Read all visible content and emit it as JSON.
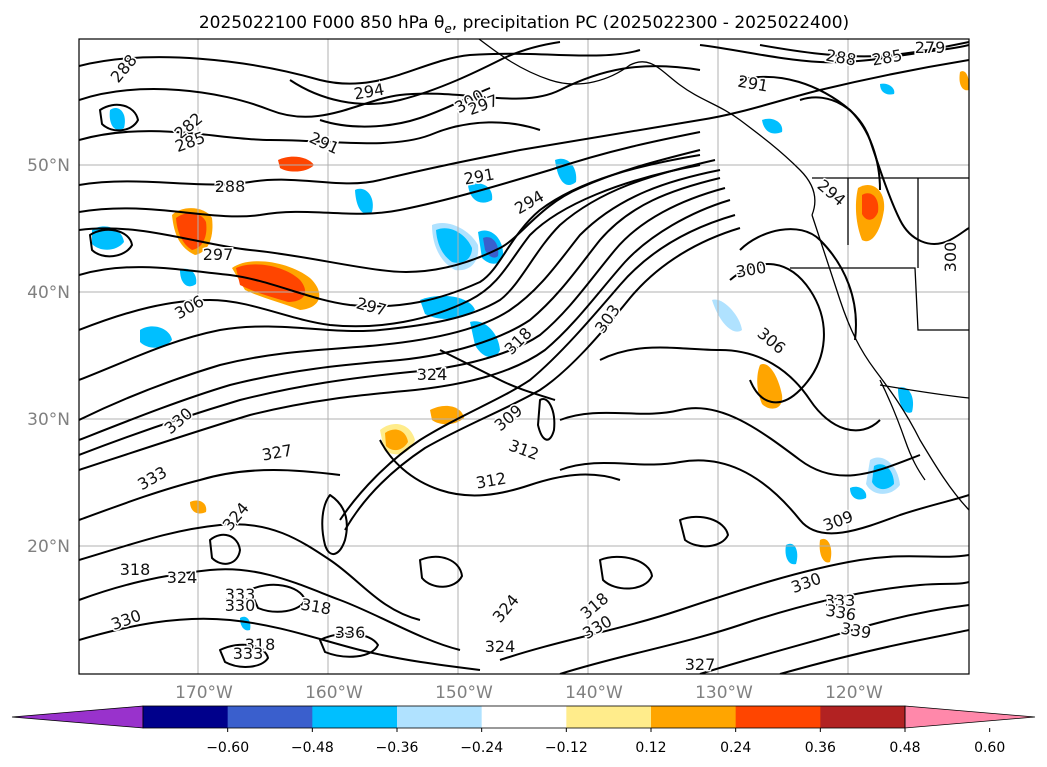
{
  "figure": {
    "title_main": "2025022100 F000 850 hPa θ",
    "title_sub": "e",
    "title_rest": ", precipitation PC (2025022300 - 2025022400)"
  },
  "axes": {
    "lat_labels": [
      "50°N",
      "40°N",
      "30°N",
      "20°N"
    ],
    "lon_labels": [
      "170°W",
      "160°W",
      "150°W",
      "140°W",
      "130°W",
      "120°W"
    ]
  },
  "colorbar": {
    "colors": [
      "#9932cc",
      "#00008b",
      "#3a5fcd",
      "#00bfff",
      "#b0e2ff",
      "#ffffff",
      "#ffec8b",
      "#ffa500",
      "#ff4500",
      "#b22222",
      "#ff88aa"
    ],
    "tick_labels": [
      "−0.60",
      "−0.48",
      "−0.36",
      "−0.24",
      "−0.12",
      "0.12",
      "0.24",
      "0.36",
      "0.48",
      "0.60"
    ]
  },
  "contour_labels": [
    {
      "text": "288"
    },
    {
      "text": "282"
    },
    {
      "text": "285"
    },
    {
      "text": "294"
    },
    {
      "text": "291"
    },
    {
      "text": "300"
    },
    {
      "text": "297"
    },
    {
      "text": "288"
    },
    {
      "text": "297"
    },
    {
      "text": "306"
    },
    {
      "text": "297"
    },
    {
      "text": "291"
    },
    {
      "text": "294"
    },
    {
      "text": "303"
    },
    {
      "text": "318"
    },
    {
      "text": "324"
    },
    {
      "text": "330"
    },
    {
      "text": "327"
    },
    {
      "text": "333"
    },
    {
      "text": "324"
    },
    {
      "text": "309"
    },
    {
      "text": "312"
    },
    {
      "text": "312"
    },
    {
      "text": "300"
    },
    {
      "text": "306"
    },
    {
      "text": "294"
    },
    {
      "text": "300"
    },
    {
      "text": "288"
    },
    {
      "text": "285"
    },
    {
      "text": "279"
    },
    {
      "text": "291"
    },
    {
      "text": "309"
    },
    {
      "text": "330"
    },
    {
      "text": "333"
    },
    {
      "text": "336"
    },
    {
      "text": "339"
    },
    {
      "text": "318"
    },
    {
      "text": "324"
    },
    {
      "text": "330"
    },
    {
      "text": "324"
    },
    {
      "text": "327"
    },
    {
      "text": "318"
    },
    {
      "text": "330"
    },
    {
      "text": "318"
    },
    {
      "text": "324"
    },
    {
      "text": "333"
    },
    {
      "text": "330"
    },
    {
      "text": "318"
    },
    {
      "text": "336"
    },
    {
      "text": "333"
    }
  ]
}
